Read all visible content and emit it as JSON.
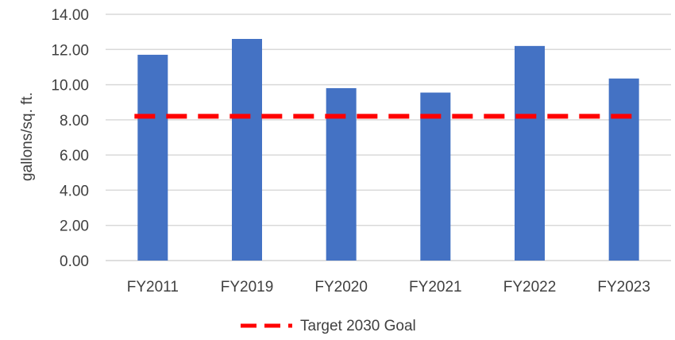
{
  "chart_data": {
    "type": "bar",
    "title": "",
    "xlabel": "",
    "ylabel": "gallons/sq. ft.",
    "categories": [
      "FY2011",
      "FY2019",
      "FY2020",
      "FY2021",
      "FY2022",
      "FY2023"
    ],
    "series": [
      {
        "values": [
          11.7,
          12.6,
          9.8,
          9.55,
          12.2,
          10.35
        ],
        "color": "#4472C4"
      }
    ],
    "reference_lines": [
      {
        "name": "Target 2030 Goal",
        "value": 8.2,
        "style": "dashed",
        "color": "#FF0000"
      }
    ],
    "ylim": [
      0,
      14
    ],
    "y_ticks": [
      "0.00",
      "2.00",
      "4.00",
      "6.00",
      "8.00",
      "10.00",
      "12.00",
      "14.00"
    ],
    "grid": true,
    "legend": {
      "placement": "bottom",
      "entries": [
        "Target 2030 Goal"
      ]
    }
  }
}
